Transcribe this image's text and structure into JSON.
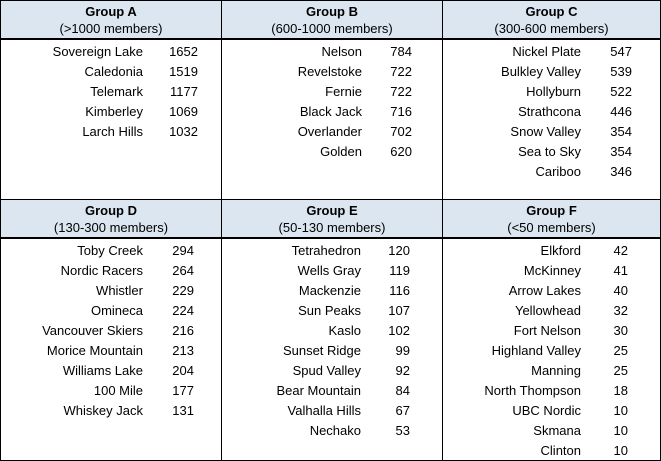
{
  "groups": [
    {
      "title": "Group A",
      "subtitle": "(>1000 members)",
      "rows": [
        [
          "Sovereign Lake",
          "1652"
        ],
        [
          "Caledonia",
          "1519"
        ],
        [
          "Telemark",
          "1177"
        ],
        [
          "Kimberley",
          "1069"
        ],
        [
          "Larch Hills",
          "1032"
        ]
      ]
    },
    {
      "title": "Group B",
      "subtitle": "(600-1000 members)",
      "rows": [
        [
          "Nelson",
          "784"
        ],
        [
          "Revelstoke",
          "722"
        ],
        [
          "Fernie",
          "722"
        ],
        [
          "Black Jack",
          "716"
        ],
        [
          "Overlander",
          "702"
        ],
        [
          "Golden",
          "620"
        ]
      ]
    },
    {
      "title": "Group C",
      "subtitle": "(300-600 members)",
      "rows": [
        [
          "Nickel Plate",
          "547"
        ],
        [
          "Bulkley Valley",
          "539"
        ],
        [
          "Hollyburn",
          "522"
        ],
        [
          "Strathcona",
          "446"
        ],
        [
          "Snow Valley",
          "354"
        ],
        [
          "Sea to Sky",
          "354"
        ],
        [
          "Cariboo",
          "346"
        ]
      ]
    },
    {
      "title": "Group D",
      "subtitle": "(130-300 members)",
      "rows": [
        [
          "Toby Creek",
          "294"
        ],
        [
          "Nordic Racers",
          "264"
        ],
        [
          "Whistler",
          "229"
        ],
        [
          "Omineca",
          "224"
        ],
        [
          "Vancouver Skiers",
          "216"
        ],
        [
          "Morice Mountain",
          "213"
        ],
        [
          "Williams Lake",
          "204"
        ],
        [
          "100 Mile",
          "177"
        ],
        [
          "Whiskey Jack",
          "131"
        ]
      ]
    },
    {
      "title": "Group E",
      "subtitle": "(50-130 members)",
      "rows": [
        [
          "Tetrahedron",
          "120"
        ],
        [
          "Wells Gray",
          "119"
        ],
        [
          "Mackenzie",
          "116"
        ],
        [
          "Sun Peaks",
          "107"
        ],
        [
          "Kaslo",
          "102"
        ],
        [
          "Sunset Ridge",
          "99"
        ],
        [
          "Spud Valley",
          "92"
        ],
        [
          "Bear Mountain",
          "84"
        ],
        [
          "Valhalla Hills",
          "67"
        ],
        [
          "Nechako",
          "53"
        ]
      ]
    },
    {
      "title": "Group F",
      "subtitle": "(<50 members)",
      "rows": [
        [
          "Elkford",
          "42"
        ],
        [
          "McKinney",
          "41"
        ],
        [
          "Arrow Lakes",
          "40"
        ],
        [
          "Yellowhead",
          "32"
        ],
        [
          "Fort Nelson",
          "30"
        ],
        [
          "Highland Valley",
          "25"
        ],
        [
          "Manning",
          "25"
        ],
        [
          "North Thompson",
          "18"
        ],
        [
          "UBC Nordic",
          "10"
        ],
        [
          "Skmana",
          "10"
        ],
        [
          "Clinton",
          "10"
        ]
      ]
    }
  ]
}
